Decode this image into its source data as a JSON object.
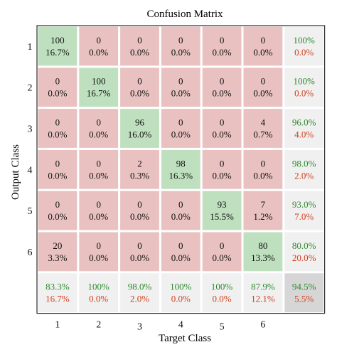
{
  "chart_data": {
    "type": "heatmap",
    "title": "Confusion Matrix",
    "xlabel": "Target Class",
    "ylabel": "Output Class",
    "row_labels": [
      "1",
      "2",
      "3",
      "4",
      "5",
      "6"
    ],
    "col_labels": [
      "1",
      "2",
      "3",
      "4",
      "5",
      "6"
    ],
    "counts": [
      [
        100,
        0,
        0,
        0,
        0,
        0
      ],
      [
        0,
        100,
        0,
        0,
        0,
        0
      ],
      [
        0,
        0,
        96,
        0,
        0,
        4
      ],
      [
        0,
        0,
        2,
        98,
        0,
        0
      ],
      [
        0,
        0,
        0,
        0,
        93,
        7
      ],
      [
        20,
        0,
        0,
        0,
        0,
        80
      ]
    ],
    "percents": [
      [
        "16.7%",
        "0.0%",
        "0.0%",
        "0.0%",
        "0.0%",
        "0.0%"
      ],
      [
        "0.0%",
        "16.7%",
        "0.0%",
        "0.0%",
        "0.0%",
        "0.0%"
      ],
      [
        "0.0%",
        "0.0%",
        "16.0%",
        "0.0%",
        "0.0%",
        "0.7%"
      ],
      [
        "0.0%",
        "0.0%",
        "0.3%",
        "16.3%",
        "0.0%",
        "0.0%"
      ],
      [
        "0.0%",
        "0.0%",
        "0.0%",
        "0.0%",
        "15.5%",
        "1.2%"
      ],
      [
        "3.3%",
        "0.0%",
        "0.0%",
        "0.0%",
        "0.0%",
        "13.3%"
      ]
    ],
    "row_summary": [
      [
        "100%",
        "0.0%"
      ],
      [
        "100%",
        "0.0%"
      ],
      [
        "96.0%",
        "4.0%"
      ],
      [
        "98.0%",
        "2.0%"
      ],
      [
        "93.0%",
        "7.0%"
      ],
      [
        "80.0%",
        "20.0%"
      ]
    ],
    "col_summary": [
      [
        "83.3%",
        "16.7%"
      ],
      [
        "100%",
        "0.0%"
      ],
      [
        "98.0%",
        "2.0%"
      ],
      [
        "100%",
        "0.0%"
      ],
      [
        "100%",
        "0.0%"
      ],
      [
        "87.9%",
        "12.1%"
      ]
    ],
    "overall": [
      "94.5%",
      "5.5%"
    ],
    "colors": {
      "diagonal": "#bfe0bf",
      "off_diagonal": "#e9c1c1",
      "summary": "#f0f0f0",
      "overall": "#d6d6d6",
      "grid": "#2b2b2b",
      "text": "#111111",
      "correct_text": "#2e8b2e",
      "error_text": "#d0411e"
    }
  }
}
